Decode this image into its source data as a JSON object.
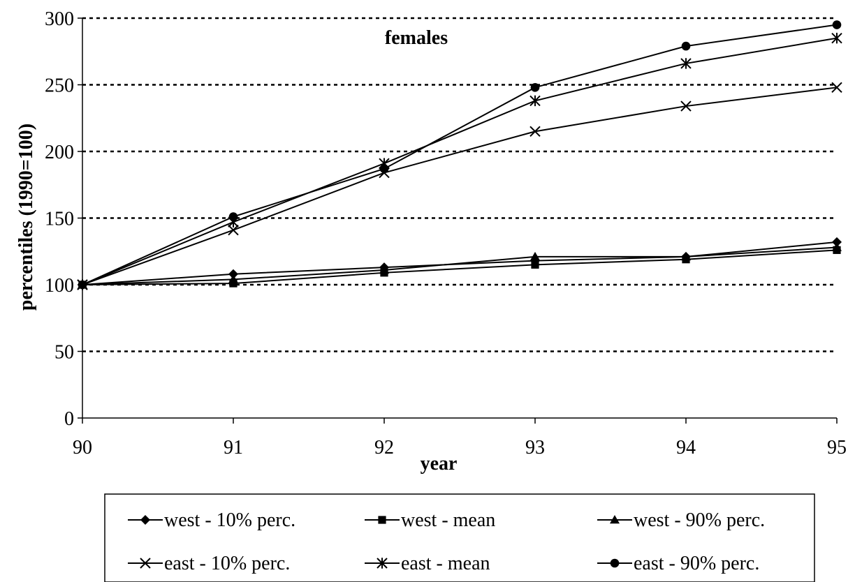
{
  "chart_data": {
    "type": "line",
    "title": "females",
    "xlabel": "year",
    "ylabel": "percentiles (1990=100)",
    "categories": [
      "90",
      "91",
      "92",
      "93",
      "94",
      "95"
    ],
    "ylim": [
      0,
      300
    ],
    "yticks": [
      0,
      50,
      100,
      150,
      200,
      250,
      300
    ],
    "grid": "horizontal dotted",
    "legend_position": "bottom",
    "series": [
      {
        "name": "west - 10% perc.",
        "marker": "diamond",
        "values": [
          100,
          108,
          113,
          118,
          121,
          132
        ]
      },
      {
        "name": "west - mean",
        "marker": "square",
        "values": [
          100,
          101,
          109,
          115,
          119,
          126
        ]
      },
      {
        "name": "west - 90% perc.",
        "marker": "triangle",
        "values": [
          100,
          104,
          111,
          121,
          121,
          128
        ]
      },
      {
        "name": "east - 10% perc.",
        "marker": "x",
        "values": [
          100,
          141,
          184,
          215,
          234,
          248
        ]
      },
      {
        "name": "east - mean",
        "marker": "star",
        "values": [
          100,
          147,
          191,
          238,
          266,
          285
        ]
      },
      {
        "name": "east - 90% perc.",
        "marker": "circle",
        "values": [
          100,
          151,
          187,
          248,
          279,
          295
        ]
      }
    ]
  }
}
